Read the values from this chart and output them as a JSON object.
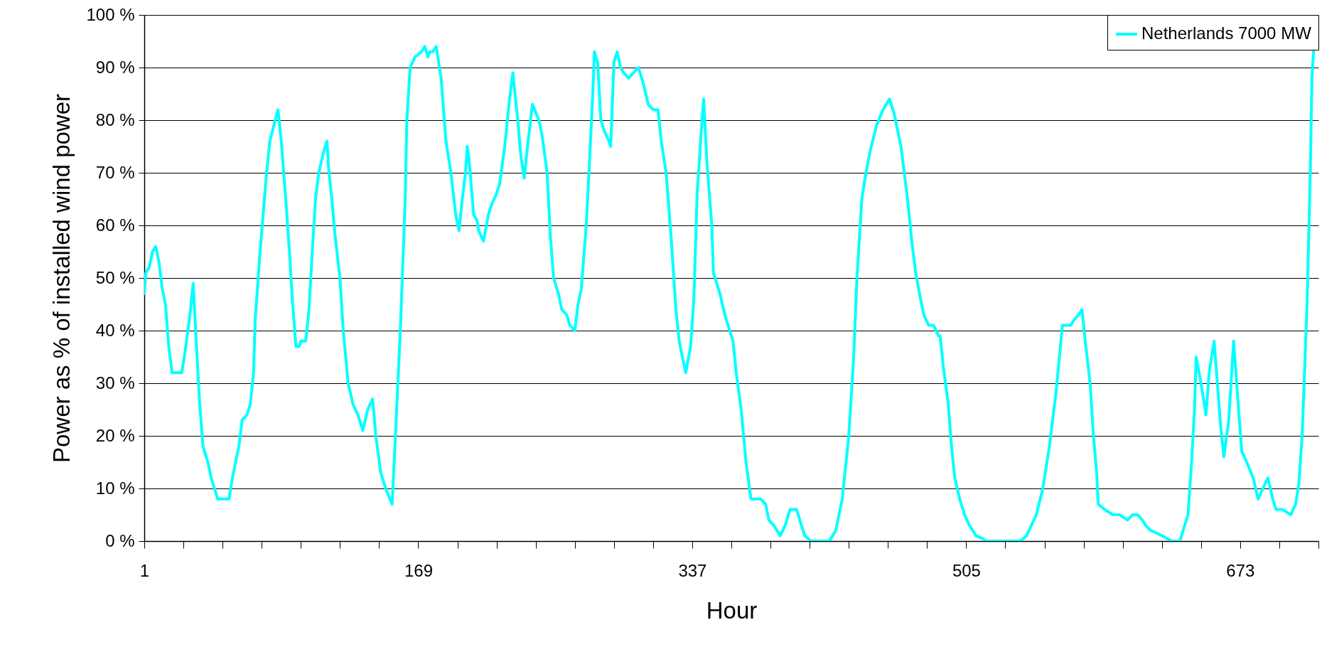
{
  "chart_data": {
    "type": "line",
    "xlabel": "Hour",
    "ylabel": "Power as % of installed wind power",
    "xlim": [
      1,
      721
    ],
    "ylim": [
      0,
      100
    ],
    "xticks": [
      1,
      {
        "value": 25,
        "label": null
      },
      {
        "value": 49,
        "label": null
      },
      {
        "value": 73,
        "label": null
      },
      {
        "value": 97,
        "label": null
      },
      {
        "value": 121,
        "label": null
      },
      {
        "value": 145,
        "label": null
      },
      169,
      {
        "value": 193,
        "label": null
      },
      {
        "value": 217,
        "label": null
      },
      {
        "value": 241,
        "label": null
      },
      {
        "value": 265,
        "label": null
      },
      {
        "value": 289,
        "label": null
      },
      {
        "value": 313,
        "label": null
      },
      337,
      {
        "value": 361,
        "label": null
      },
      {
        "value": 385,
        "label": null
      },
      {
        "value": 409,
        "label": null
      },
      {
        "value": 433,
        "label": null
      },
      {
        "value": 457,
        "label": null
      },
      {
        "value": 481,
        "label": null
      },
      505,
      {
        "value": 529,
        "label": null
      },
      {
        "value": 553,
        "label": null
      },
      {
        "value": 577,
        "label": null
      },
      {
        "value": 601,
        "label": null
      },
      {
        "value": 625,
        "label": null
      },
      {
        "value": 649,
        "label": null
      },
      673,
      {
        "value": 697,
        "label": null
      },
      {
        "value": 721,
        "label": null
      }
    ],
    "yticks": [
      {
        "value": 0,
        "label": "0 %"
      },
      {
        "value": 10,
        "label": "10 %"
      },
      {
        "value": 20,
        "label": "20 %"
      },
      {
        "value": 30,
        "label": "30 %"
      },
      {
        "value": 40,
        "label": "40 %"
      },
      {
        "value": 50,
        "label": "50 %"
      },
      {
        "value": 60,
        "label": "60 %"
      },
      {
        "value": 70,
        "label": "70 %"
      },
      {
        "value": 80,
        "label": "80 %"
      },
      {
        "value": 90,
        "label": "90 %"
      },
      {
        "value": 100,
        "label": "100 %"
      }
    ],
    "grid": "y",
    "legend": "top right",
    "marker": "none",
    "line_style": "solid",
    "series": [
      {
        "name": "Netherlands 7000 MW",
        "color": "#00ffff",
        "x": [
          1,
          2,
          4,
          6,
          8,
          10,
          12,
          14,
          16,
          18,
          24,
          26,
          29,
          31,
          33,
          35,
          37,
          40,
          42,
          44,
          46,
          53,
          55,
          59,
          61,
          64,
          66,
          68,
          69,
          72,
          76,
          78,
          83,
          85,
          88,
          90,
          92,
          94,
          96,
          97,
          100,
          102,
          104,
          106,
          108,
          111,
          113,
          114,
          116,
          118,
          121,
          123,
          126,
          129,
          132,
          135,
          138,
          141,
          143,
          146,
          149,
          153,
          155,
          158,
          161,
          162,
          164,
          167,
          171,
          173,
          175,
          176,
          178,
          180,
          183,
          186,
          189,
          192,
          194,
          196,
          198,
          199,
          200,
          203,
          205,
          206,
          209,
          212,
          214,
          217,
          219,
          222,
          225,
          227,
          230,
          232,
          234,
          236,
          239,
          243,
          245,
          248,
          250,
          252,
          255,
          257,
          260,
          262,
          265,
          267,
          269,
          272,
          274,
          276,
          277,
          279,
          281,
          283,
          286,
          287,
          289,
          291,
          293,
          295,
          298,
          301,
          304,
          307,
          310,
          313,
          316,
          318,
          321,
          324,
          327,
          329,
          331,
          333,
          336,
          338,
          340,
          343,
          344,
          346,
          349,
          350,
          354,
          357,
          359,
          362,
          364,
          367,
          370,
          373,
          375,
          379,
          382,
          384,
          387,
          391,
          394,
          397,
          401,
          404,
          406,
          410,
          421,
          425,
          429,
          433,
          436,
          438,
          441,
          443,
          446,
          450,
          454,
          458,
          461,
          465,
          469,
          472,
          474,
          477,
          479,
          482,
          485,
          488,
          489,
          491,
          494,
          496,
          498,
          501,
          504,
          507,
          511,
          515,
          517,
          538,
          542,
          545,
          548,
          552,
          556,
          560,
          564,
          569,
          571,
          574,
          576,
          578,
          581,
          583,
          585,
          586,
          590,
          595,
          599,
          604,
          607,
          610,
          613,
          615,
          618,
          622,
          625,
          631,
          636,
          638,
          641,
          643,
          645,
          646,
          649,
          652,
          654,
          657,
          659,
          661,
          663,
          666,
          669,
          672,
          674,
          677,
          681,
          684,
          687,
          690,
          693,
          695,
          699,
          704,
          707,
          709,
          711,
          714,
          716,
          717,
          718
        ],
        "values": [
          47,
          51,
          52,
          55,
          56,
          53,
          48,
          45,
          37,
          32,
          32,
          36,
          43,
          49,
          37,
          26,
          18,
          15,
          12,
          10,
          8,
          8,
          12,
          18,
          23,
          24,
          26,
          32,
          42,
          55,
          70,
          76,
          82,
          76,
          64,
          55,
          45,
          37,
          37,
          38,
          38,
          44,
          55,
          65,
          70,
          74,
          76,
          71,
          65,
          58,
          50,
          40,
          30,
          26,
          24,
          21,
          25,
          27,
          20,
          13,
          10,
          7,
          20,
          40,
          65,
          80,
          90,
          92,
          93,
          94,
          92,
          93,
          93,
          94,
          88,
          76,
          70,
          62,
          59,
          65,
          70,
          75,
          73,
          62,
          61,
          59,
          57,
          62,
          64,
          66,
          68,
          75,
          84,
          89,
          80,
          73,
          69,
          75,
          83,
          80,
          77,
          70,
          58,
          50,
          47,
          44,
          43,
          41,
          40,
          45,
          48,
          60,
          72,
          85,
          93,
          91,
          80,
          78,
          76,
          75,
          91,
          93,
          90,
          89,
          88,
          89,
          90,
          87,
          83,
          82,
          82,
          76,
          70,
          58,
          44,
          38,
          35,
          32,
          37,
          46,
          66,
          80,
          84,
          72,
          60,
          51,
          47,
          43,
          41,
          38,
          32,
          25,
          15,
          8,
          8,
          8,
          7,
          4,
          3,
          1,
          3,
          6,
          6,
          3,
          1,
          0,
          0,
          2,
          8,
          20,
          35,
          50,
          65,
          69,
          74,
          79,
          82,
          84,
          81,
          75,
          65,
          56,
          51,
          46,
          43,
          41,
          41,
          39,
          39,
          33,
          26,
          18,
          12,
          8,
          5,
          3,
          1,
          0.5,
          0,
          0,
          1,
          3,
          5,
          10,
          18,
          28,
          41,
          41,
          42,
          43,
          44,
          38,
          30,
          20,
          13,
          7,
          6,
          5,
          5,
          4,
          5,
          5,
          4,
          3,
          2,
          1.5,
          1,
          0,
          0,
          2,
          5,
          14,
          25,
          35,
          30,
          24,
          32,
          38,
          30,
          22,
          16,
          23,
          38,
          25,
          17,
          15,
          12,
          8,
          10,
          12,
          8,
          6,
          6,
          5,
          7,
          11,
          20,
          45,
          70,
          88,
          93
        ]
      }
    ]
  }
}
